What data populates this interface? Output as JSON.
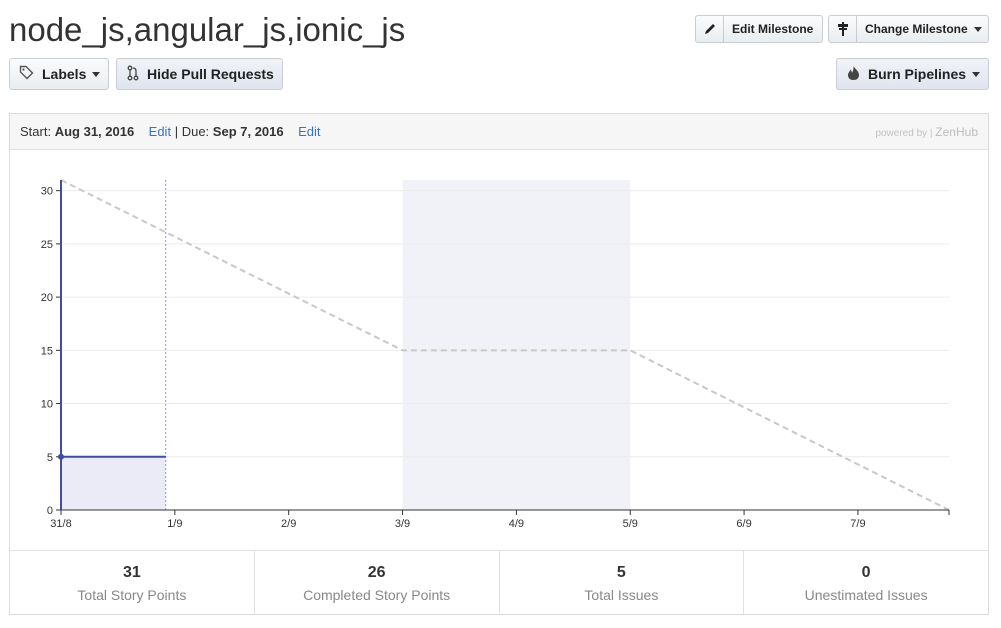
{
  "header": {
    "title": "node_js,angular_js,ionic_js",
    "edit_milestone_label": "Edit Milestone",
    "change_milestone_label": "Change Milestone",
    "labels_label": "Labels",
    "hide_pr_label": "Hide Pull Requests",
    "burn_pipelines_label": "Burn Pipelines"
  },
  "milestone": {
    "start_label": "Start:",
    "start_date": "Aug 31, 2016",
    "edit_label": "Edit",
    "separator": "|",
    "due_label": "Due:",
    "due_date": "Sep 7, 2016",
    "powered_by": "powered by |",
    "brand": "ZenHub"
  },
  "chart_data": {
    "type": "line",
    "x_ticks": [
      "31/8",
      "1/9",
      "2/9",
      "3/9",
      "4/9",
      "5/9",
      "6/9",
      "7/9"
    ],
    "x_range": [
      0,
      7.8
    ],
    "y_ticks": [
      0,
      5,
      10,
      15,
      20,
      25,
      30
    ],
    "ylim": [
      0,
      31
    ],
    "ideal_line": {
      "x": [
        0,
        3,
        5,
        7.8
      ],
      "y": [
        31,
        15,
        15,
        0
      ],
      "style": "dashed",
      "color": "#c8c8c8"
    },
    "remaining_line": {
      "x": [
        0,
        0,
        0.92
      ],
      "y": [
        31,
        5,
        5
      ],
      "color": "#3f4ea0"
    },
    "today_x": 0.92,
    "weekend_band": [
      3,
      5
    ],
    "grid": true
  },
  "stats": [
    {
      "value": "31",
      "label": "Total Story Points"
    },
    {
      "value": "26",
      "label": "Completed Story Points"
    },
    {
      "value": "5",
      "label": "Total Issues"
    },
    {
      "value": "0",
      "label": "Unestimated Issues"
    }
  ],
  "colors": {
    "accent": "#3f4ea0",
    "link": "#3b73b9"
  },
  "icons": {
    "edit": "pencil-icon",
    "change": "signpost-icon",
    "labels": "tag-icon",
    "pr": "pull-request-icon",
    "burn": "flame-icon"
  }
}
